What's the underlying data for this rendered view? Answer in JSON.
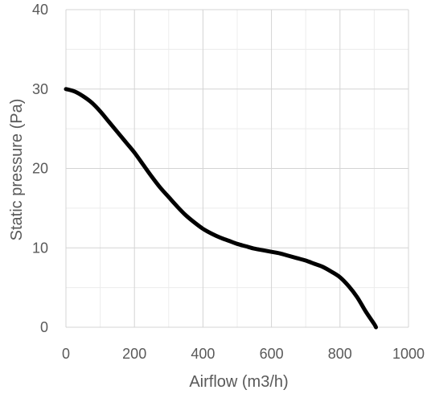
{
  "chart_data": {
    "type": "line",
    "title": "",
    "xlabel": "Airflow (m3/h)",
    "ylabel": "Static pressure (Pa)",
    "xlim": [
      0,
      1000
    ],
    "ylim": [
      0,
      40
    ],
    "x_ticks": [
      0,
      200,
      400,
      600,
      800,
      1000
    ],
    "y_ticks": [
      0,
      10,
      20,
      30,
      40
    ],
    "x_minor_grid_step": 100,
    "y_minor_grid_step": 5,
    "grid": true,
    "legend": "none",
    "series": [
      {
        "color": "#000000",
        "x": [
          0,
          25,
          50,
          75,
          100,
          125,
          150,
          175,
          200,
          225,
          250,
          275,
          300,
          325,
          350,
          375,
          400,
          425,
          450,
          475,
          500,
          525,
          550,
          575,
          600,
          625,
          650,
          675,
          700,
          725,
          750,
          775,
          800,
          825,
          850,
          875,
          900,
          905
        ],
        "y": [
          30.0,
          29.7,
          29.1,
          28.3,
          27.2,
          25.9,
          24.6,
          23.3,
          22.0,
          20.5,
          19.0,
          17.6,
          16.4,
          15.2,
          14.1,
          13.2,
          12.4,
          11.8,
          11.3,
          10.9,
          10.5,
          10.2,
          9.9,
          9.7,
          9.5,
          9.3,
          9.0,
          8.7,
          8.4,
          8.0,
          7.6,
          7.0,
          6.3,
          5.2,
          3.8,
          2.0,
          0.4,
          0
        ]
      }
    ]
  }
}
